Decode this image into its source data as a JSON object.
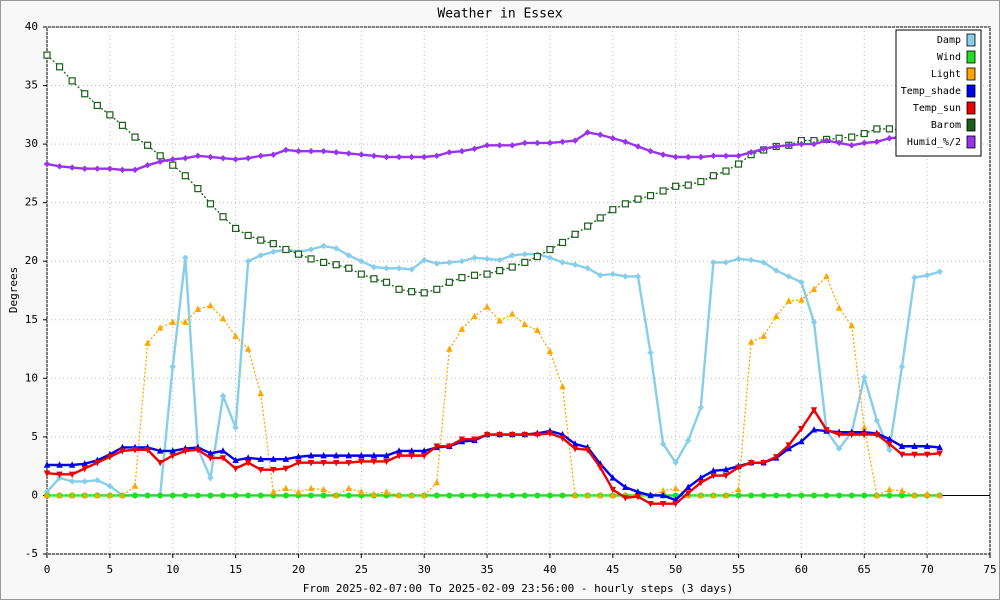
{
  "chart_data": {
    "type": "line",
    "title": "Weather in Essex",
    "y_label": "Degrees",
    "x_label": "From 2025-02-07:00 To 2025-02-09 23:56:00 - hourly steps (3 days)",
    "x": [
      0,
      1,
      2,
      3,
      4,
      5,
      6,
      7,
      8,
      9,
      10,
      11,
      12,
      13,
      14,
      15,
      16,
      17,
      18,
      19,
      20,
      21,
      22,
      23,
      24,
      25,
      26,
      27,
      28,
      29,
      30,
      31,
      32,
      33,
      34,
      35,
      36,
      37,
      38,
      39,
      40,
      41,
      42,
      43,
      44,
      45,
      46,
      47,
      48,
      49,
      50,
      51,
      52,
      53,
      54,
      55,
      56,
      57,
      58,
      59,
      60,
      61,
      62,
      63,
      64,
      65,
      66,
      67,
      68,
      69,
      70,
      71
    ],
    "xlim": [
      0,
      75
    ],
    "xticks": [
      0,
      5,
      10,
      15,
      20,
      25,
      30,
      35,
      40,
      45,
      50,
      55,
      60,
      65,
      70,
      75
    ],
    "ylim": [
      -5,
      40
    ],
    "yticks": [
      -5,
      0,
      5,
      10,
      15,
      20,
      25,
      30,
      35,
      40
    ],
    "grid": true,
    "legend": "top-right",
    "series": [
      {
        "name": "Damp",
        "color": "#87ceeb",
        "marker": "diamond",
        "dotted": false,
        "values": [
          0.3,
          1.5,
          1.2,
          1.2,
          1.3,
          0.8,
          0,
          0,
          0,
          0,
          11,
          20.3,
          4,
          1.5,
          8.5,
          5.8,
          20,
          20.5,
          20.8,
          21,
          20.8,
          21,
          21.3,
          21.1,
          20.5,
          20,
          19.5,
          19.4,
          19.4,
          19.3,
          20.1,
          19.8,
          19.9,
          20,
          20.3,
          20.2,
          20.1,
          20.5,
          20.6,
          20.6,
          20.3,
          19.9,
          19.7,
          19.4,
          18.8,
          18.9,
          18.7,
          18.7,
          12.2,
          4.4,
          2.8,
          4.7,
          7.5,
          19.9,
          19.9,
          20.2,
          20.1,
          19.9,
          19.2,
          18.7,
          18.2,
          14.8,
          5.5,
          4,
          5.4,
          10.1,
          6.4,
          3.9,
          11,
          18.6,
          18.8,
          19.1
        ]
      },
      {
        "name": "Wind",
        "color": "#22dd22",
        "marker": "circle",
        "dotted": false,
        "values": [
          0,
          0,
          0,
          0,
          0,
          0,
          0,
          0,
          0,
          0,
          0,
          0,
          0,
          0,
          0,
          0,
          0,
          0,
          0,
          0,
          0,
          0,
          0,
          0,
          0,
          0,
          0,
          0,
          0,
          0,
          0,
          0,
          0,
          0,
          0,
          0,
          0,
          0,
          0,
          0,
          0,
          0,
          0,
          0,
          0,
          0,
          0,
          0,
          0,
          0,
          0,
          0,
          0,
          0,
          0,
          0,
          0,
          0,
          0,
          0,
          0,
          0,
          0,
          0,
          0,
          0,
          0,
          0,
          0,
          0,
          0,
          0
        ]
      },
      {
        "name": "Light",
        "color": "#ffa500",
        "marker": "triangle",
        "dotted": true,
        "values": [
          0,
          0,
          0,
          0,
          0,
          0,
          0,
          0.8,
          13,
          14.3,
          14.8,
          14.8,
          15.9,
          16.2,
          15.1,
          13.6,
          12.5,
          8.7,
          0.3,
          0.6,
          0.3,
          0.6,
          0.5,
          0,
          0.6,
          0.3,
          0.1,
          0.3,
          0,
          0,
          0,
          1.1,
          12.5,
          14.2,
          15.3,
          16.1,
          14.9,
          15.5,
          14.6,
          14.1,
          12.3,
          9.3,
          0,
          0,
          0,
          0,
          0,
          0,
          0,
          0.4,
          0.6,
          0,
          0,
          0,
          0,
          0.5,
          13.1,
          13.6,
          15.3,
          16.6,
          16.7,
          17.6,
          18.7,
          16,
          14.5,
          5.8,
          0,
          0.5,
          0.4,
          0,
          0.1,
          0
        ]
      },
      {
        "name": "Temp_shade",
        "color": "#0000ee",
        "marker": "triangle",
        "dotted": false,
        "values": [
          2.6,
          2.6,
          2.6,
          2.7,
          3.0,
          3.5,
          4.1,
          4.1,
          4.1,
          3.8,
          3.8,
          4.0,
          4.1,
          3.6,
          3.8,
          3.0,
          3.2,
          3.1,
          3.1,
          3.1,
          3.3,
          3.4,
          3.4,
          3.4,
          3.4,
          3.4,
          3.4,
          3.4,
          3.8,
          3.8,
          3.8,
          4.1,
          4.2,
          4.6,
          4.7,
          5.2,
          5.2,
          5.2,
          5.2,
          5.3,
          5.5,
          5.2,
          4.4,
          4.1,
          2.7,
          1.5,
          0.7,
          0.3,
          0,
          0,
          -0.4,
          0.7,
          1.5,
          2.1,
          2.2,
          2.5,
          2.8,
          2.8,
          3.2,
          4.0,
          4.6,
          5.6,
          5.5,
          5.4,
          5.4,
          5.4,
          5.3,
          4.8,
          4.2,
          4.2,
          4.2,
          4.1
        ]
      },
      {
        "name": "Temp_sun",
        "color": "#ee0000",
        "marker": "triangle-down",
        "dotted": false,
        "values": [
          1.9,
          1.8,
          1.8,
          2.3,
          2.8,
          3.3,
          3.8,
          3.9,
          3.9,
          2.8,
          3.4,
          3.8,
          3.9,
          3.2,
          3.2,
          2.3,
          2.8,
          2.2,
          2.2,
          2.3,
          2.8,
          2.8,
          2.8,
          2.8,
          2.8,
          2.9,
          2.9,
          2.9,
          3.4,
          3.4,
          3.4,
          4.2,
          4.2,
          4.8,
          4.8,
          5.2,
          5.2,
          5.2,
          5.2,
          5.2,
          5.3,
          4.9,
          4.0,
          3.9,
          2.4,
          0.5,
          -0.2,
          -0.1,
          -0.7,
          -0.7,
          -0.7,
          0.2,
          1.1,
          1.7,
          1.7,
          2.4,
          2.8,
          2.8,
          3.3,
          4.3,
          5.7,
          7.3,
          5.6,
          5.2,
          5.2,
          5.2,
          5.2,
          4.4,
          3.5,
          3.5,
          3.5,
          3.6
        ]
      },
      {
        "name": "Barom",
        "color": "#1a5e1a",
        "marker": "square",
        "dotted": true,
        "values": [
          37.6,
          36.6,
          35.4,
          34.3,
          33.3,
          32.5,
          31.6,
          30.6,
          29.9,
          29.0,
          28.2,
          27.3,
          26.2,
          24.9,
          23.8,
          22.8,
          22.2,
          21.8,
          21.5,
          21.0,
          20.6,
          20.2,
          19.9,
          19.7,
          19.4,
          18.9,
          18.5,
          18.2,
          17.6,
          17.4,
          17.3,
          17.6,
          18.2,
          18.6,
          18.8,
          18.9,
          19.2,
          19.5,
          19.9,
          20.4,
          21.0,
          21.6,
          22.3,
          23.0,
          23.7,
          24.4,
          24.9,
          25.3,
          25.6,
          26.0,
          26.4,
          26.5,
          26.8,
          27.3,
          27.7,
          28.3,
          29.1,
          29.5,
          29.8,
          29.9,
          30.3,
          30.3,
          30.4,
          30.5,
          30.6,
          30.9,
          31.3,
          31.3,
          31.2,
          30.9,
          31.1,
          31.1
        ]
      },
      {
        "name": "Humid_%/2",
        "color": "#9933ee",
        "marker": "diamond",
        "dotted": false,
        "values": [
          28.3,
          28.1,
          28.0,
          27.9,
          27.9,
          27.9,
          27.8,
          27.8,
          28.2,
          28.5,
          28.7,
          28.8,
          29.0,
          28.9,
          28.8,
          28.7,
          28.8,
          29.0,
          29.1,
          29.5,
          29.4,
          29.4,
          29.4,
          29.3,
          29.2,
          29.1,
          29.0,
          28.9,
          28.9,
          28.9,
          28.9,
          29.0,
          29.3,
          29.4,
          29.6,
          29.9,
          29.9,
          29.9,
          30.1,
          30.1,
          30.1,
          30.2,
          30.3,
          31.0,
          30.8,
          30.5,
          30.2,
          29.8,
          29.4,
          29.1,
          28.9,
          28.9,
          28.9,
          29.0,
          29.0,
          29.0,
          29.3,
          29.6,
          29.8,
          29.9,
          30.0,
          30.0,
          30.3,
          30.1,
          29.9,
          30.1,
          30.2,
          30.5,
          30.6,
          30.6,
          30.6,
          30.6
        ]
      }
    ]
  }
}
